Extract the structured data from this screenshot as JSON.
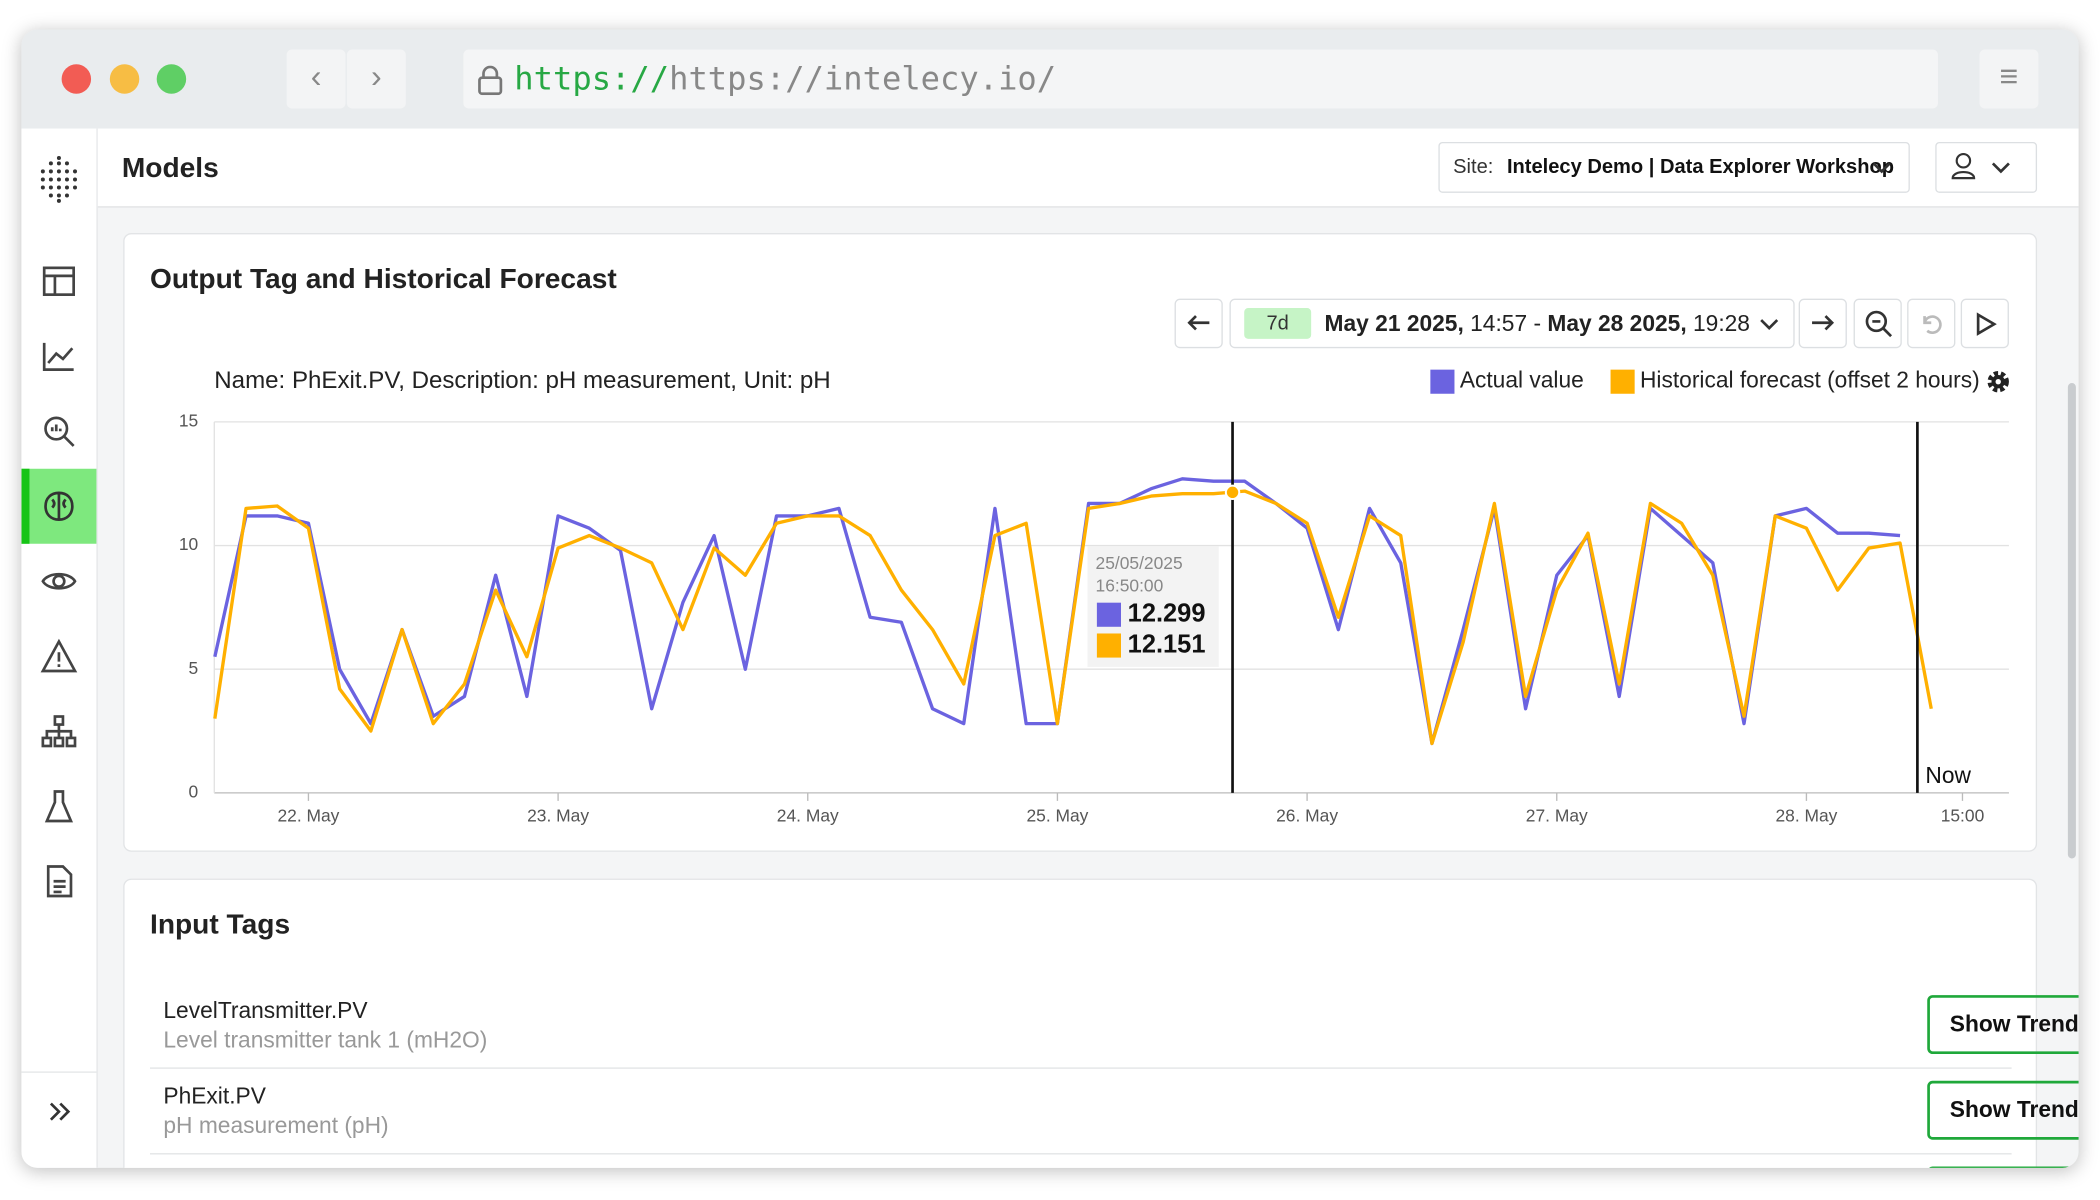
{
  "browser": {
    "url_scheme": "https://",
    "url_rest": "https://intelecy.io/"
  },
  "header": {
    "title": "Models",
    "site_label": "Site:",
    "site_name": "Intelecy Demo | Data Explorer Workshop"
  },
  "card": {
    "title": "Output Tag and Historical Forecast",
    "range_preset": "7d",
    "range_start_date": "May 21 2025,",
    "range_start_time": "14:57",
    "range_separator": "-",
    "range_end_date": "May 28 2025,",
    "range_end_time": "19:28"
  },
  "chart_data": {
    "type": "line",
    "subtitle": "Name: PhExit.PV, Description: pH measurement, Unit: pH",
    "x": [
      "2025-05-21T15:00",
      "2025-05-21T18:00",
      "2025-05-21T21:00",
      "2025-05-22T00:00",
      "2025-05-22T03:00",
      "2025-05-22T06:00",
      "2025-05-22T09:00",
      "2025-05-22T12:00",
      "2025-05-22T15:00",
      "2025-05-22T18:00",
      "2025-05-22T21:00",
      "2025-05-23T00:00",
      "2025-05-23T03:00",
      "2025-05-23T06:00",
      "2025-05-23T09:00",
      "2025-05-23T12:00",
      "2025-05-23T15:00",
      "2025-05-23T18:00",
      "2025-05-23T21:00",
      "2025-05-24T00:00",
      "2025-05-24T03:00",
      "2025-05-24T06:00",
      "2025-05-24T09:00",
      "2025-05-24T12:00",
      "2025-05-24T15:00",
      "2025-05-24T18:00",
      "2025-05-24T21:00",
      "2025-05-25T00:00",
      "2025-05-25T03:00",
      "2025-05-25T06:00",
      "2025-05-25T09:00",
      "2025-05-25T12:00",
      "2025-05-25T15:00",
      "2025-05-25T18:00",
      "2025-05-25T21:00",
      "2025-05-26T00:00",
      "2025-05-26T03:00",
      "2025-05-26T06:00",
      "2025-05-26T09:00",
      "2025-05-26T12:00",
      "2025-05-26T15:00",
      "2025-05-26T18:00",
      "2025-05-26T21:00",
      "2025-05-27T00:00",
      "2025-05-27T03:00",
      "2025-05-27T06:00",
      "2025-05-27T09:00",
      "2025-05-27T12:00",
      "2025-05-27T15:00",
      "2025-05-27T18:00",
      "2025-05-27T21:00",
      "2025-05-28T00:00",
      "2025-05-28T03:00",
      "2025-05-28T06:00",
      "2025-05-28T09:00",
      "2025-05-28T12:00"
    ],
    "series": [
      {
        "name": "Actual value",
        "color": "#6b63e0",
        "values": [
          5.5,
          11.2,
          11.2,
          10.9,
          5,
          2.8,
          6.6,
          3.1,
          3.9,
          8.8,
          3.9,
          11.2,
          10.7,
          9.8,
          3.4,
          7.7,
          10.4,
          5,
          11.2,
          11.2,
          11.5,
          7.1,
          6.9,
          3.4,
          2.8,
          11.5,
          2.8,
          2.8,
          11.7,
          11.7,
          12.3,
          12.7,
          12.6,
          12.6,
          11.7,
          10.7,
          6.6,
          11.5,
          9.3,
          2,
          6.6,
          11.5,
          3.4,
          8.8,
          10.4,
          3.9,
          11.5,
          10.4,
          9.3,
          2.8,
          11.2,
          11.5,
          10.5,
          10.5,
          10.4,
          null
        ]
      },
      {
        "name": "Historical forecast (offset 2 hours)",
        "color": "#ffb000",
        "values": [
          3,
          11.5,
          11.6,
          10.7,
          4.2,
          2.5,
          6.6,
          2.8,
          4.4,
          8.2,
          5.5,
          9.9,
          10.4,
          9.9,
          9.3,
          6.6,
          9.9,
          8.8,
          10.9,
          11.2,
          11.2,
          10.4,
          8.2,
          6.6,
          4.4,
          10.4,
          10.9,
          2.8,
          11.5,
          11.7,
          12,
          12.1,
          12.1,
          12.2,
          11.7,
          10.9,
          7.1,
          11.2,
          10.4,
          2,
          6.1,
          11.7,
          3.9,
          8.2,
          10.5,
          4.4,
          11.7,
          10.9,
          8.8,
          3.1,
          11.2,
          10.7,
          8.2,
          9.9,
          10.1,
          3.4
        ]
      }
    ],
    "xlim": [
      "2025-05-21T14:57",
      "2025-05-28T19:28"
    ],
    "xticks": [
      {
        "value": "2025-05-22T00:00",
        "label": "22. May"
      },
      {
        "value": "2025-05-23T00:00",
        "label": "23. May"
      },
      {
        "value": "2025-05-24T00:00",
        "label": "24. May"
      },
      {
        "value": "2025-05-25T00:00",
        "label": "25. May"
      },
      {
        "value": "2025-05-26T00:00",
        "label": "26. May"
      },
      {
        "value": "2025-05-27T00:00",
        "label": "27. May"
      },
      {
        "value": "2025-05-28T00:00",
        "label": "28. May"
      },
      {
        "value": "2025-05-28T15:00",
        "label": "15:00"
      }
    ],
    "ylim": [
      0,
      15
    ],
    "yticks": [
      0,
      5,
      10,
      15
    ],
    "grid": true,
    "markers": [
      {
        "x": "2025-05-25T16:50"
      },
      {
        "x": "2025-05-28T10:40",
        "label": "Now"
      }
    ],
    "tooltip": {
      "title": "25/05/2025 16:50:00",
      "values": [
        12.299,
        12.151
      ]
    }
  },
  "inputs": {
    "title": "Input Tags",
    "rows": [
      {
        "name": "LevelTransmitter.PV",
        "description": "Level transmitter tank 1 (mH2O)",
        "button": "Show Trend"
      },
      {
        "name": "PhExit.PV",
        "description": "pH measurement (pH)",
        "button": "Show Trend"
      }
    ]
  }
}
